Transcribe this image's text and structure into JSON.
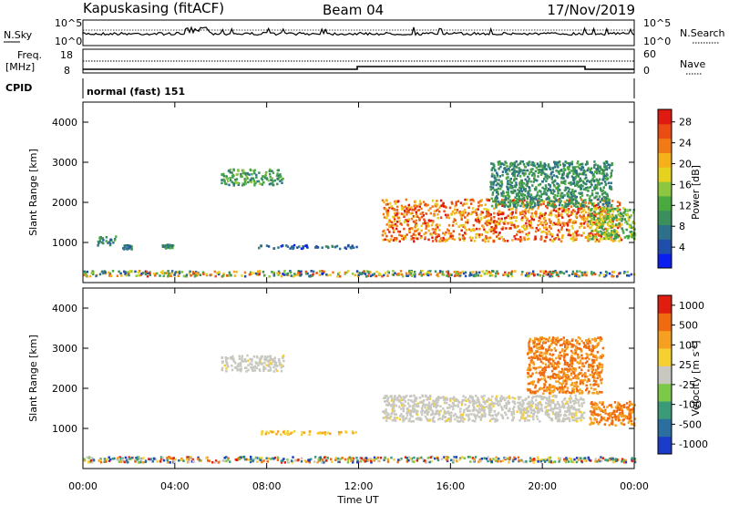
{
  "header": {
    "station": "Kapuskasing (fitACF)",
    "beam": "Beam 04",
    "date": "17/Nov/2019"
  },
  "strip_labels": {
    "nsky": "N.Sky",
    "nsearch": "N.Search",
    "freq": "Freq.",
    "freq_unit": "[MHz]",
    "nave": "Nave",
    "cpid": "CPID",
    "cpid_value": "normal (fast) 151",
    "noise_top": "10^5",
    "noise_bottom": "10^0",
    "freq_top": "18",
    "freq_bottom": "8",
    "nave_top": "60",
    "nave_bottom": "0"
  },
  "chart_data": [
    {
      "type": "heatmap",
      "name": "power",
      "ylabel": "Slant Range [km]",
      "xlabel": "Time UT",
      "xlim_hours": [
        0,
        24
      ],
      "ylim": [
        0,
        4500
      ],
      "x_ticks": [
        "00:00",
        "04:00",
        "08:00",
        "12:00",
        "16:00",
        "20:00",
        "00:00"
      ],
      "y_ticks": [
        1000,
        2000,
        3000,
        4000
      ],
      "colorbar": {
        "label": "Power [dB]",
        "ticks": [
          "4",
          "8",
          "12",
          "16",
          "20",
          "24",
          "28"
        ],
        "colors": [
          "#0a1ef0",
          "#1f4faa",
          "#2e6f8a",
          "#3a8f5c",
          "#4aaa40",
          "#8dc63f",
          "#e4d21e",
          "#f5b01a",
          "#f07a16",
          "#ea4c13",
          "#e01a10"
        ]
      },
      "regions": [
        {
          "t": [
            0.0,
            24.0
          ],
          "r": [
            180,
            320
          ],
          "v": [
            4,
            28
          ]
        },
        {
          "t": [
            0.6,
            1.4
          ],
          "r": [
            950,
            1180
          ],
          "v": [
            6,
            14
          ]
        },
        {
          "t": [
            1.7,
            2.1
          ],
          "r": [
            860,
            960
          ],
          "v": [
            6,
            12
          ]
        },
        {
          "t": [
            3.4,
            3.9
          ],
          "r": [
            880,
            980
          ],
          "v": [
            8,
            14
          ]
        },
        {
          "t": [
            6.0,
            8.7
          ],
          "r": [
            2450,
            2850
          ],
          "v": [
            8,
            16
          ]
        },
        {
          "t": [
            7.6,
            11.9
          ],
          "r": [
            870,
            960
          ],
          "v": [
            4,
            12
          ]
        },
        {
          "t": [
            13.0,
            23.4
          ],
          "r": [
            1050,
            2100
          ],
          "v": [
            18,
            30
          ]
        },
        {
          "t": [
            17.7,
            23.0
          ],
          "r": [
            1900,
            3050
          ],
          "v": [
            8,
            14
          ]
        },
        {
          "t": [
            22.0,
            24.0
          ],
          "r": [
            1100,
            1900
          ],
          "v": [
            10,
            20
          ]
        }
      ]
    },
    {
      "type": "heatmap",
      "name": "velocity",
      "ylabel": "Slant Range [km]",
      "xlabel": "Time UT",
      "xlim_hours": [
        0,
        24
      ],
      "ylim": [
        0,
        4500
      ],
      "x_ticks": [
        "00:00",
        "04:00",
        "08:00",
        "12:00",
        "16:00",
        "20:00",
        "00:00"
      ],
      "y_ticks": [
        1000,
        2000,
        3000,
        4000
      ],
      "colorbar": {
        "label": "Velocity [m s^-1]",
        "ticks": [
          "1000",
          "500",
          "100",
          "25",
          "-25",
          "-100",
          "-500",
          "-1000"
        ],
        "colors": [
          "#1a3cc8",
          "#2a6fa0",
          "#3b9a78",
          "#7cc848",
          "#c8c8c0",
          "#f5d030",
          "#f5a020",
          "#f06a10",
          "#e01e10"
        ]
      },
      "regions": [
        {
          "t": [
            0.0,
            24.0
          ],
          "r": [
            180,
            320
          ],
          "c": "mixed"
        },
        {
          "t": [
            6.0,
            8.7
          ],
          "r": [
            2450,
            2850
          ],
          "c": "gray"
        },
        {
          "t": [
            7.6,
            11.9
          ],
          "r": [
            870,
            960
          ],
          "c": "yellow"
        },
        {
          "t": [
            13.0,
            21.8
          ],
          "r": [
            1200,
            1850
          ],
          "c": "gray"
        },
        {
          "t": [
            19.3,
            22.6
          ],
          "r": [
            1900,
            3300
          ],
          "c": "orange"
        },
        {
          "t": [
            22.0,
            24.0
          ],
          "r": [
            1100,
            1700
          ],
          "c": "orange"
        }
      ]
    }
  ]
}
